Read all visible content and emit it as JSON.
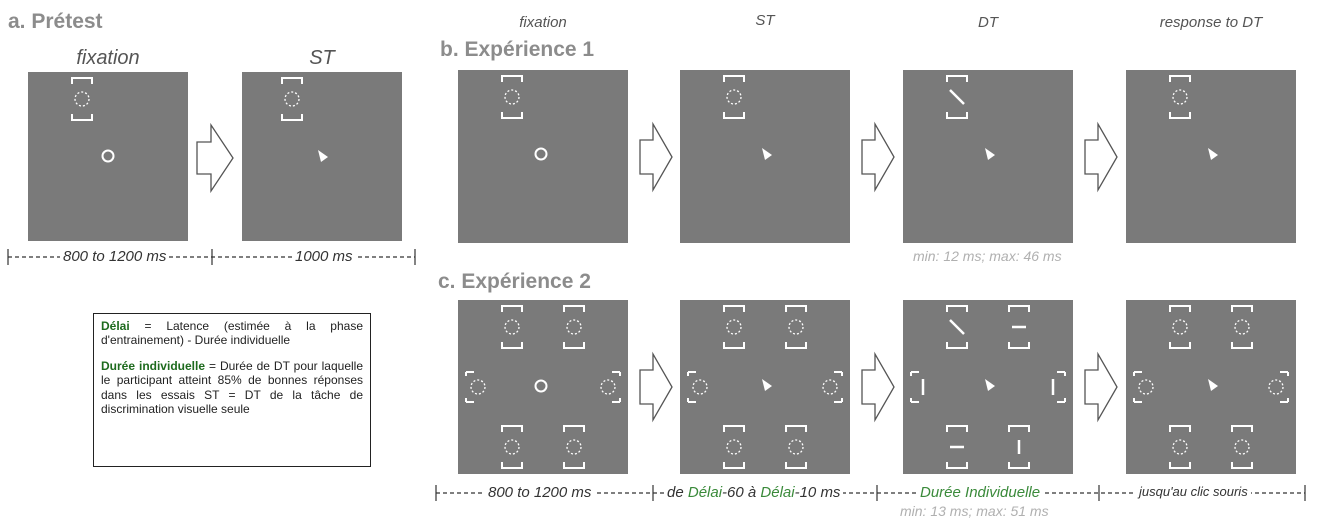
{
  "sections": {
    "a": "a. Prétest",
    "b": "b. Expérience 1",
    "c": "c. Expérience 2"
  },
  "a_labels": {
    "fixation": "fixation",
    "st": "ST"
  },
  "top_labels": {
    "fixation": "fixation",
    "st": "ST",
    "dt": "DT",
    "response": "response to DT"
  },
  "a_durations": {
    "d1": "800 to 1200 ms",
    "d2": "1000 ms"
  },
  "b_minmax": "min: 12 ms; max: 46 ms",
  "c_durations": {
    "d1": "800 to 1200 ms",
    "d2_pre": "de ",
    "d2_term1": "Délai",
    "d2_mid": "-60 à ",
    "d2_term2": "Délai",
    "d2_post": "-10 ms",
    "d3": "Durée Individuelle",
    "d4": "jusqu'au clic souris"
  },
  "c_minmax": "min: 13 ms; max: 51 ms",
  "legend": {
    "term1": "Délai",
    "def1": " = Latence (estimée à la phase d'entrainement) - Durée individuelle",
    "term2": "Durée individuelle",
    "def2": " = Durée de DT pour laquelle le participant atteint 85% de bonnes réponses dans les essais ST = DT de la tâche de discrimination visuelle seule"
  },
  "colors": {
    "panel": "#7a7a7a",
    "term": "#1e6b1e",
    "section": "#8c8c8c"
  }
}
